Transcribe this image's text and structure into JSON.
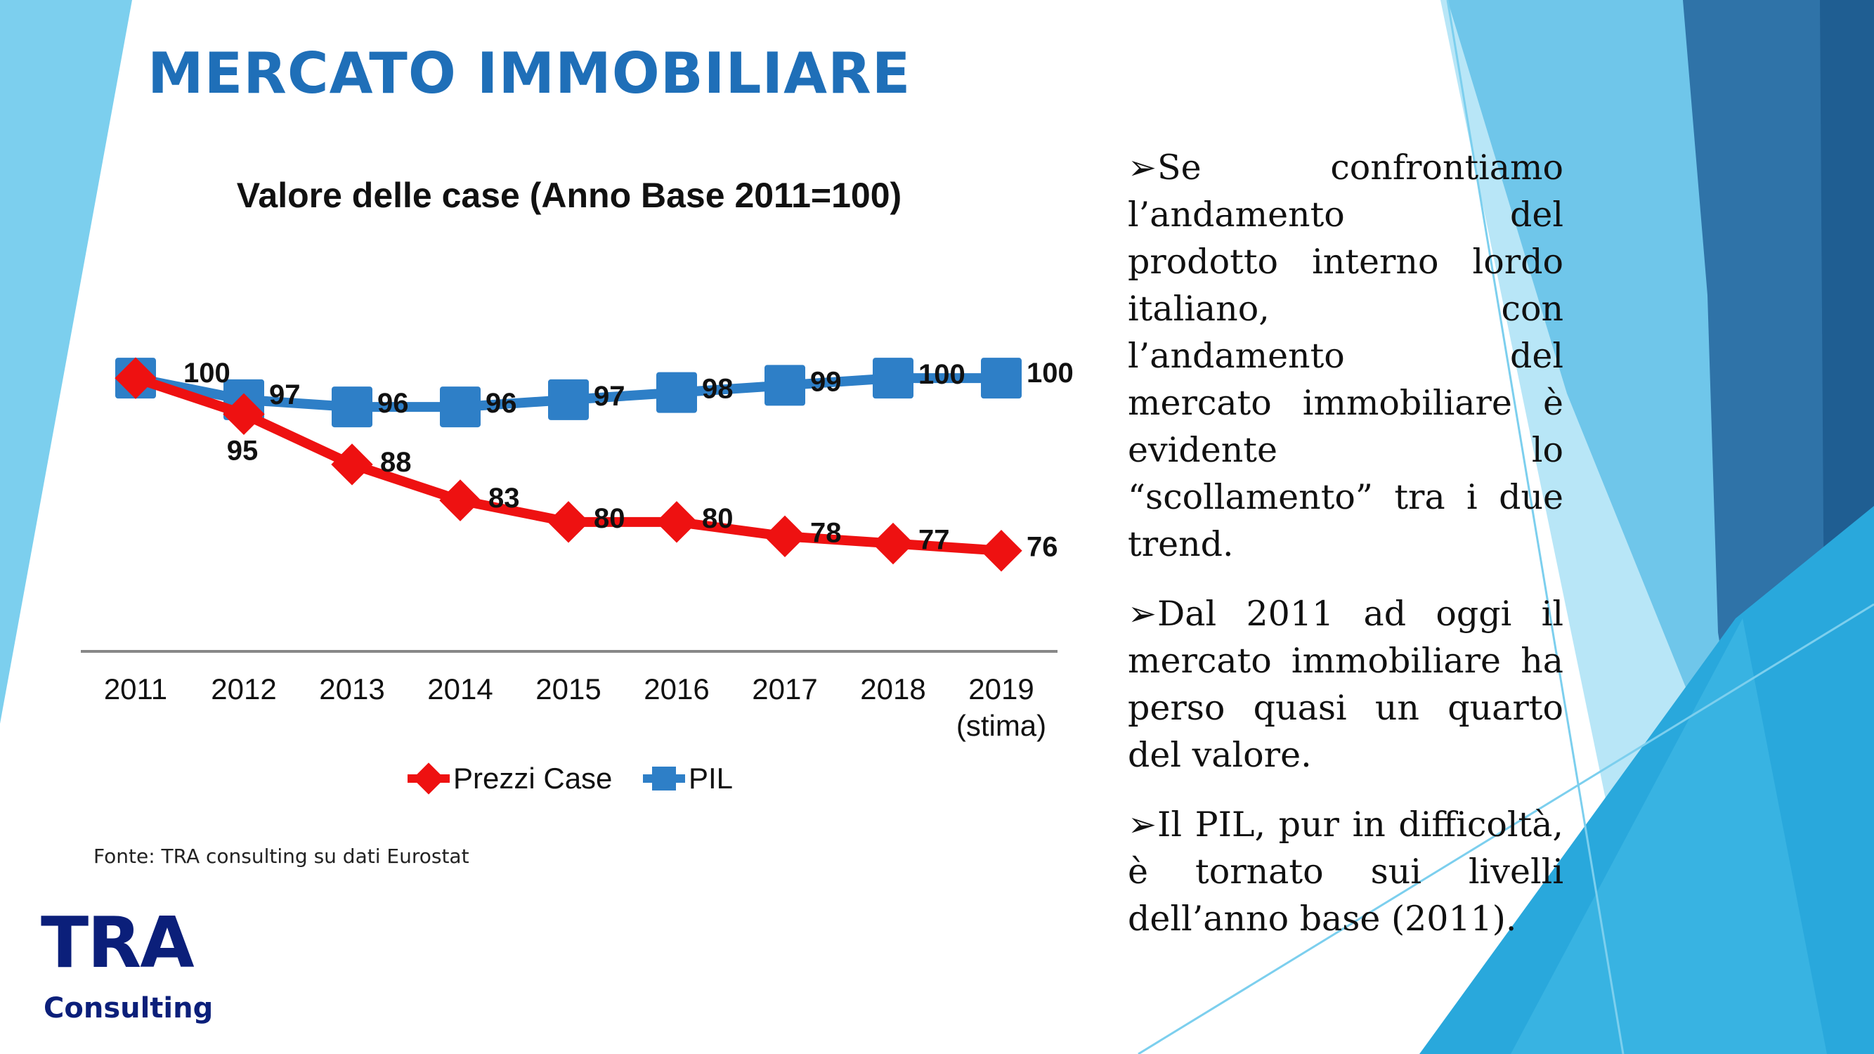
{
  "slide": {
    "title": "MERCATO IMMOBILIARE",
    "source": "Fonte: TRA consulting su dati Eurostat"
  },
  "logo": {
    "name": "TRA",
    "subtitle": "Consulting",
    "color": "#0b1f7a"
  },
  "bullets": [
    {
      "icon": "arrow-bullet-icon",
      "text": "Se confrontiamo l’andamento del prodotto interno lordo italiano, con l’andamento del mercato immobiliare è evidente lo “scollamento” tra i due trend."
    },
    {
      "icon": "arrow-bullet-icon",
      "text": "Dal 2011 ad oggi il mercato immobiliare ha perso quasi un quarto del valore."
    },
    {
      "icon": "arrow-bullet-icon",
      "text": "Il PIL, pur in difficoltà, è tornato sui livelli dell’anno base (2011)."
    }
  ],
  "colors": {
    "title": "#1f6fb8",
    "prezzi": "#ee1111",
    "pil": "#2e7fc7"
  },
  "chart_data": {
    "type": "line",
    "title": "Valore delle case (Anno Base 2011=100)",
    "categories": [
      "2011",
      "2012",
      "2013",
      "2014",
      "2015",
      "2016",
      "2017",
      "2018",
      "2019"
    ],
    "category_sublabels": [
      "",
      "",
      "",
      "",
      "",
      "",
      "",
      "",
      "(stima)"
    ],
    "series": [
      {
        "name": "Prezzi Case",
        "color": "#ee1111",
        "marker": "diamond",
        "values": [
          100,
          95,
          88,
          83,
          80,
          80,
          78,
          77,
          76
        ],
        "labels": [
          "",
          "95",
          "88",
          "83",
          "80",
          "80",
          "78",
          "77",
          "76"
        ]
      },
      {
        "name": "PIL",
        "color": "#2e7fc7",
        "marker": "square",
        "values": [
          100,
          97,
          96,
          96,
          97,
          98,
          99,
          100,
          100
        ],
        "labels": [
          "100",
          "97",
          "96",
          "96",
          "97",
          "98",
          "99",
          "100",
          "100"
        ]
      }
    ],
    "ylim": [
      62,
      105
    ],
    "grid": false,
    "legend": "bottom"
  }
}
